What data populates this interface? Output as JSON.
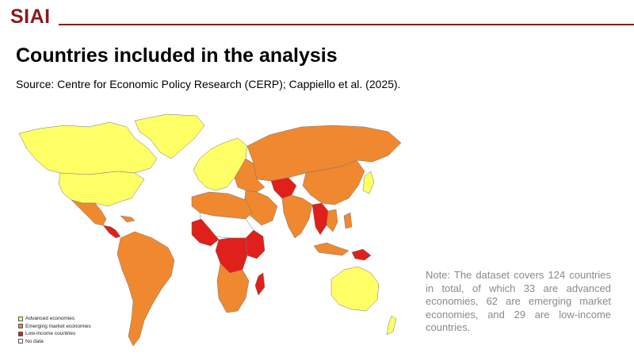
{
  "header": {
    "brand": "SIAI",
    "brand_color": "#8b1a1a"
  },
  "slide": {
    "title": "Countries included in the analysis",
    "source": "Source: Centre for Economic Policy Research (CERP); Cappiello et al. (2025)."
  },
  "map": {
    "legend": [
      {
        "label": "Advanced economies",
        "color": "#ffff66"
      },
      {
        "label": "Emerging market economies",
        "color": "#f0882f"
      },
      {
        "label": "Low-income countries",
        "color": "#e0201b"
      },
      {
        "label": "No data",
        "color": "#ffffff"
      }
    ]
  },
  "note": {
    "text": "Note: The dataset covers 124 countries in total, of which 33 are advanced economies, 62 are emerging market economies, and 29 are low-income countries."
  }
}
